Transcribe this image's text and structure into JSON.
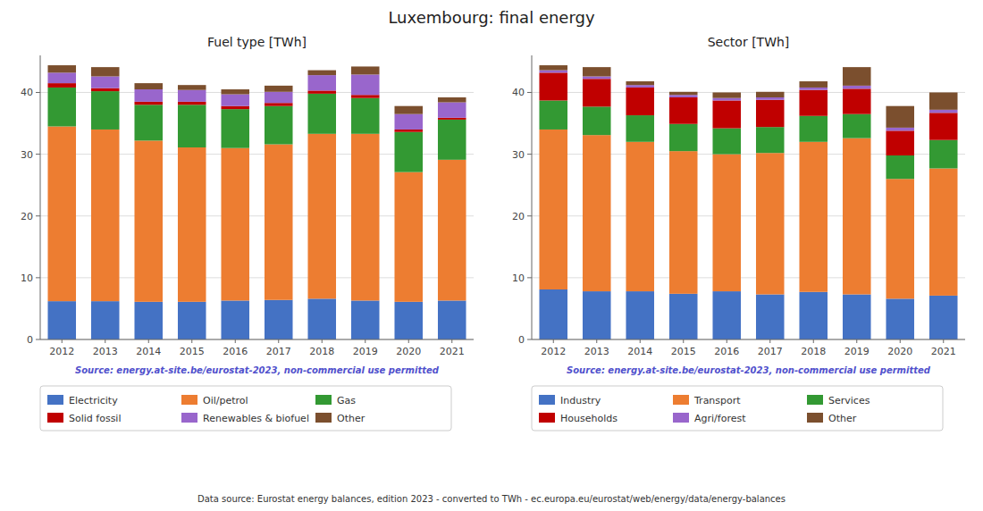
{
  "title": "Luxembourg: final energy",
  "annotations": [
    "Data source: Eurostat energy balances, edition 2023 - converted to TWh - ec.europa.eu/eurostat/web/energy/data/energy-balances"
  ],
  "chart_data": [
    {
      "type": "bar",
      "stacked": true,
      "grid": true,
      "legend": "bottom",
      "title": "Fuel type [TWh]",
      "annotations": [
        "Source: energy.at-site.be/eurostat-2023, non-commercial use permitted"
      ],
      "categories": [
        "2012",
        "2013",
        "2014",
        "2015",
        "2016",
        "2017",
        "2018",
        "2019",
        "2020",
        "2021"
      ],
      "ylim": [
        0,
        46
      ],
      "yticks": [
        0,
        10,
        20,
        30,
        40
      ],
      "series": [
        {
          "name": "Electricity",
          "color": "#4472c4",
          "values": [
            6.2,
            6.2,
            6.1,
            6.1,
            6.3,
            6.4,
            6.6,
            6.3,
            6.1,
            6.3
          ]
        },
        {
          "name": "Oil/petrol",
          "color": "#ed7d31",
          "values": [
            28.3,
            27.8,
            26.1,
            25.0,
            24.7,
            25.2,
            26.7,
            27.0,
            21.0,
            22.8
          ]
        },
        {
          "name": "Gas",
          "color": "#339933",
          "values": [
            6.3,
            6.2,
            5.8,
            6.9,
            6.3,
            6.2,
            6.5,
            5.8,
            6.5,
            6.5
          ]
        },
        {
          "name": "Solid fossil",
          "color": "#c00000",
          "values": [
            0.7,
            0.5,
            0.5,
            0.5,
            0.5,
            0.5,
            0.5,
            0.5,
            0.4,
            0.3
          ]
        },
        {
          "name": "Renewables & biofuel",
          "color": "#9966cc",
          "values": [
            1.7,
            1.9,
            2.0,
            1.9,
            1.9,
            1.8,
            2.5,
            3.3,
            2.5,
            2.5
          ]
        },
        {
          "name": "Other",
          "color": "#7b4f2e",
          "values": [
            1.2,
            1.5,
            1.0,
            0.8,
            0.8,
            1.0,
            0.8,
            1.3,
            1.3,
            0.8
          ]
        }
      ]
    },
    {
      "type": "bar",
      "stacked": true,
      "grid": true,
      "legend": "bottom",
      "title": "Sector [TWh]",
      "annotations": [
        "Source: energy.at-site.be/eurostat-2023, non-commercial use permitted"
      ],
      "categories": [
        "2012",
        "2013",
        "2014",
        "2015",
        "2016",
        "2017",
        "2018",
        "2019",
        "2020",
        "2021"
      ],
      "ylim": [
        0,
        46
      ],
      "yticks": [
        0,
        10,
        20,
        30,
        40
      ],
      "series": [
        {
          "name": "Industry",
          "color": "#4472c4",
          "values": [
            8.1,
            7.8,
            7.8,
            7.4,
            7.8,
            7.3,
            7.7,
            7.3,
            6.6,
            7.1
          ]
        },
        {
          "name": "Transport",
          "color": "#ed7d31",
          "values": [
            25.9,
            25.3,
            24.2,
            23.1,
            22.2,
            22.9,
            24.3,
            25.3,
            19.4,
            20.6
          ]
        },
        {
          "name": "Services",
          "color": "#339933",
          "values": [
            4.7,
            4.6,
            4.3,
            4.4,
            4.2,
            4.2,
            4.2,
            3.9,
            3.8,
            4.6
          ]
        },
        {
          "name": "Households",
          "color": "#c00000",
          "values": [
            4.5,
            4.5,
            4.5,
            4.3,
            4.5,
            4.4,
            4.2,
            4.1,
            4.0,
            4.4
          ]
        },
        {
          "name": "Agri/forest",
          "color": "#9966cc",
          "values": [
            0.4,
            0.4,
            0.4,
            0.4,
            0.4,
            0.4,
            0.4,
            0.5,
            0.5,
            0.5
          ]
        },
        {
          "name": "Other",
          "color": "#7b4f2e",
          "values": [
            0.8,
            1.5,
            0.6,
            0.5,
            0.9,
            0.9,
            1.0,
            3.0,
            3.5,
            2.8
          ]
        }
      ]
    }
  ]
}
